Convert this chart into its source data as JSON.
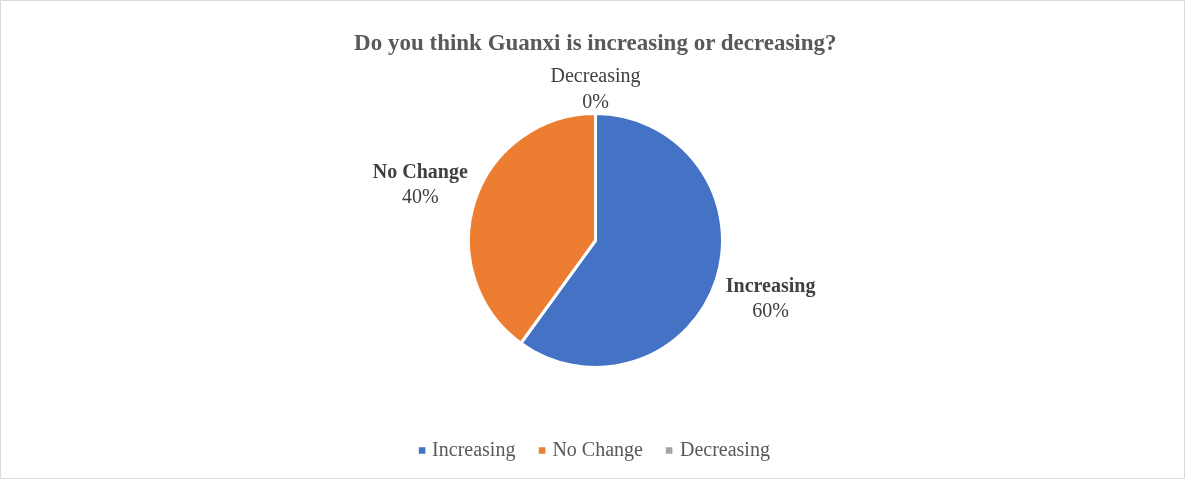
{
  "chart_data": {
    "type": "pie",
    "title": "Do you think Guanxi is increasing or decreasing?",
    "categories": [
      "Increasing",
      "No Change",
      "Decreasing"
    ],
    "values": [
      60,
      40,
      0
    ],
    "colors": [
      "#4472c4",
      "#ed7d31",
      "#a5a5a5"
    ],
    "value_labels": [
      "60%",
      "40%",
      "0%"
    ],
    "legend": "bottom"
  }
}
